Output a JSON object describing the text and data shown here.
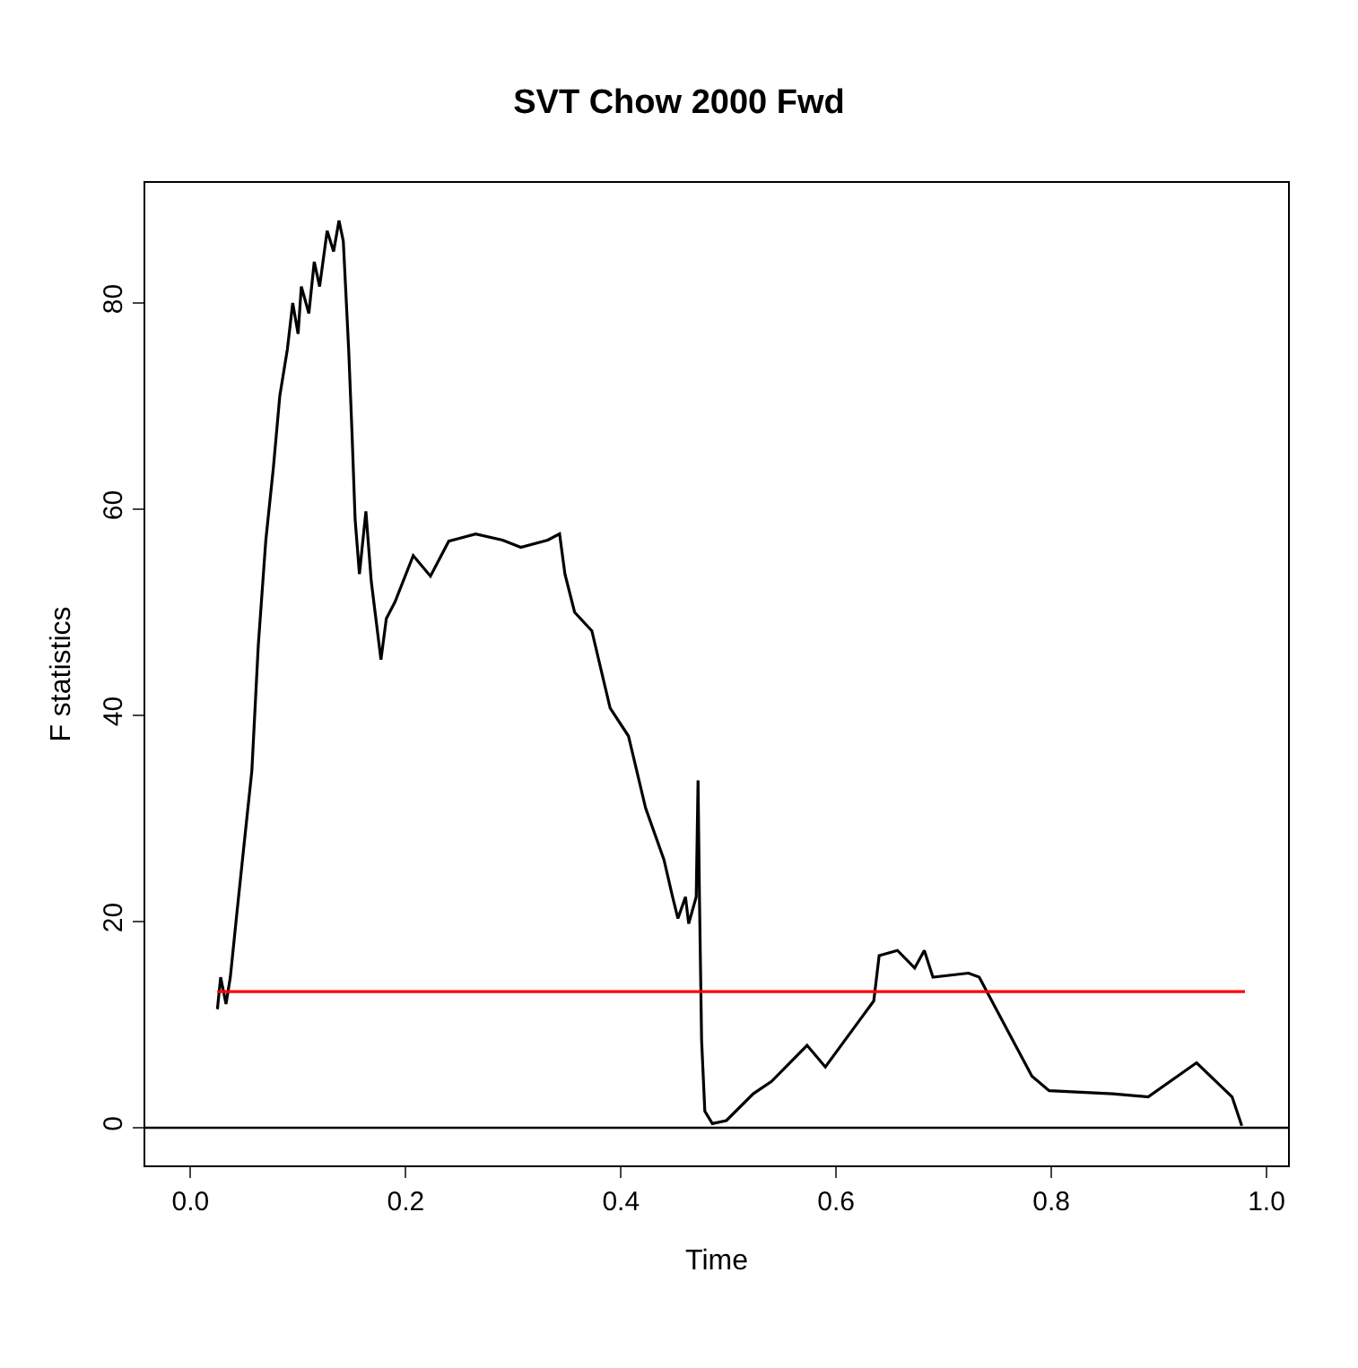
{
  "chart_data": {
    "type": "line",
    "title": "SVT Chow 2000 Fwd",
    "xlabel": "Time",
    "ylabel": "F statistics",
    "x": [
      0.025,
      0.028,
      0.033,
      0.037,
      0.043,
      0.05,
      0.057,
      0.063,
      0.07,
      0.077,
      0.083,
      0.09,
      0.095,
      0.1,
      0.103,
      0.11,
      0.115,
      0.12,
      0.127,
      0.133,
      0.138,
      0.142,
      0.147,
      0.15,
      0.153,
      0.157,
      0.163,
      0.168,
      0.177,
      0.182,
      0.19,
      0.207,
      0.223,
      0.24,
      0.265,
      0.29,
      0.307,
      0.332,
      0.343,
      0.348,
      0.357,
      0.373,
      0.39,
      0.407,
      0.423,
      0.44,
      0.448,
      0.453,
      0.46,
      0.463,
      0.47,
      0.4717,
      0.473,
      0.475,
      0.478,
      0.485,
      0.498,
      0.523,
      0.54,
      0.573,
      0.59,
      0.623,
      0.635,
      0.64,
      0.657,
      0.673,
      0.682,
      0.69,
      0.723,
      0.733,
      0.757,
      0.782,
      0.798,
      0.857,
      0.89,
      0.935,
      0.968,
      0.977
    ],
    "series": [
      {
        "color": "#000000",
        "values": [
          11.5,
          14.6,
          12,
          14.6,
          20.7,
          27.7,
          34.6,
          46.8,
          57,
          64,
          71,
          75.5,
          80,
          77,
          81.6,
          79,
          84,
          81.6,
          87,
          85,
          88,
          86,
          75.5,
          67.7,
          59,
          53.7,
          59.8,
          53,
          45.4,
          49.4,
          51,
          55.5,
          53.5,
          56.9,
          57.6,
          57,
          56.3,
          57,
          57.6,
          53.7,
          50,
          48.2,
          40.7,
          38,
          31,
          26,
          22.4,
          20.3,
          22.4,
          19.8,
          22.4,
          33.7,
          22.4,
          8.5,
          1.6,
          0.4,
          0.7,
          3.3,
          4.5,
          8,
          5.9,
          10.6,
          12.3,
          16.7,
          17.2,
          15.5,
          17.2,
          14.6,
          15,
          14.6,
          9.9,
          5,
          3.6,
          3.3,
          3,
          6.3,
          3,
          0.2
        ]
      },
      {
        "type": "line",
        "color": "#ff0000",
        "x": [
          0.025,
          0.98
        ],
        "values": [
          13.2,
          13.2
        ]
      }
    ],
    "xlim": [
      -0.042,
      1.02
    ],
    "ylim": [
      -3.65,
      91.65
    ],
    "xticks": [
      {
        "value": 0,
        "label": "0.0"
      },
      0.2,
      0.4,
      0.6,
      0.8,
      {
        "value": 1,
        "label": "1.0"
      }
    ],
    "yticks": [
      0,
      20,
      40,
      60,
      80
    ],
    "ref_lines": [
      {
        "axis": "y",
        "value": 0,
        "color": "#000000"
      }
    ],
    "grid": false,
    "marker": "none",
    "line_style": "solid"
  }
}
